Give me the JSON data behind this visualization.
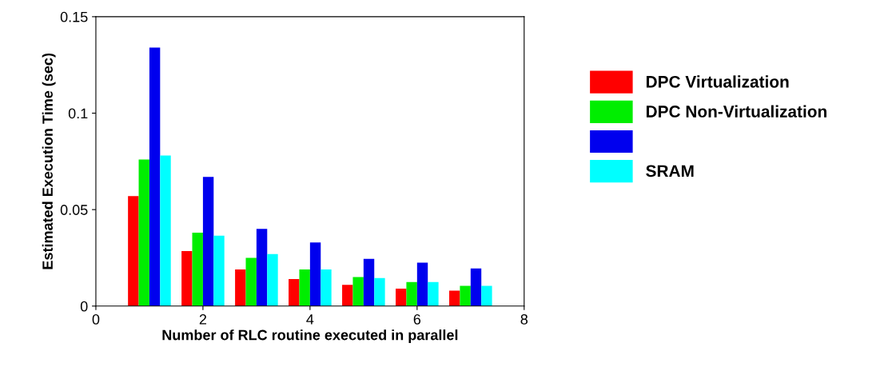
{
  "chart_data": {
    "type": "bar",
    "xlabel": "Number of RLC routine executed in parallel",
    "ylabel": "Estimated Execution Time (sec)",
    "x": [
      1,
      2,
      3,
      4,
      5,
      6,
      7
    ],
    "series": [
      {
        "name": "DPC Virtualization",
        "color": "#ff0000",
        "values": [
          0.057,
          0.0285,
          0.019,
          0.014,
          0.011,
          0.009,
          0.008
        ]
      },
      {
        "name": "DPC Non-Virtualization",
        "color": "#00ee00",
        "values": [
          0.076,
          0.038,
          0.025,
          0.019,
          0.015,
          0.0125,
          0.0105
        ]
      },
      {
        "color": "#0000ee",
        "values": [
          0.134,
          0.067,
          0.04,
          0.033,
          0.0245,
          0.0225,
          0.0195
        ]
      },
      {
        "name": "SRAM",
        "color": "#00ffff",
        "values": [
          0.078,
          0.0365,
          0.027,
          0.019,
          0.0145,
          0.0125,
          0.0105
        ]
      }
    ],
    "xlim": [
      0,
      8
    ],
    "xticks": [
      0,
      2,
      4,
      6,
      8
    ],
    "ylim": [
      0,
      0.15
    ],
    "yticks": [
      0,
      0.05,
      0.1,
      0.15
    ],
    "grid": false,
    "legend": "right"
  }
}
